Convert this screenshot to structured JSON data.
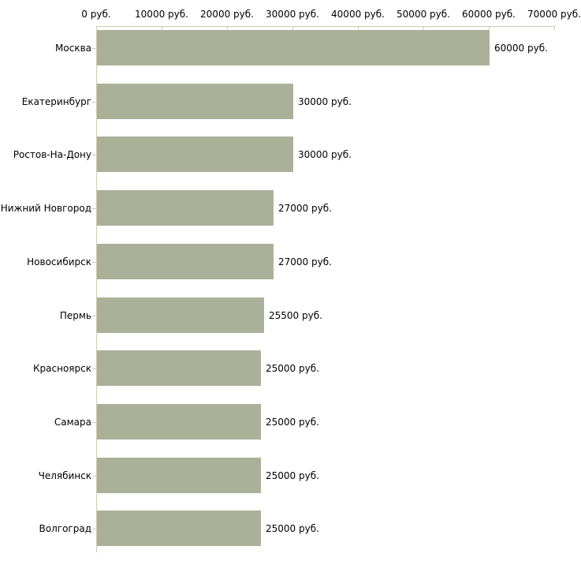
{
  "chart_data": {
    "type": "bar",
    "orientation": "horizontal",
    "title": "",
    "xlabel": "",
    "ylabel": "",
    "categories": [
      "Москва",
      "Екатеринбург",
      "Ростов-На-Дону",
      "Нижний Новгород",
      "Новосибирск",
      "Пермь",
      "Красноярск",
      "Самара",
      "Челябинск",
      "Волгоград"
    ],
    "values": [
      60000,
      30000,
      30000,
      27000,
      27000,
      25500,
      25000,
      25000,
      25000,
      25000
    ],
    "value_labels": [
      "60000 руб.",
      "30000 руб.",
      "30000 руб.",
      "27000 руб.",
      "27000 руб.",
      "25500 руб.",
      "25000 руб.",
      "25000 руб.",
      "25000 руб.",
      "25000 руб."
    ],
    "x_tick_values": [
      0,
      10000,
      20000,
      30000,
      40000,
      50000,
      60000,
      70000
    ],
    "x_tick_labels": [
      "0 руб.",
      "10000 руб.",
      "20000 руб.",
      "30000 руб.",
      "40000 руб.",
      "50000 руб.",
      "60000 руб.",
      "70000 руб."
    ],
    "xlim": [
      0,
      70000
    ],
    "axis_position": "top",
    "grid": "off",
    "legend": "none",
    "colors": {
      "bar": "#abb199",
      "axis": "#cfcbb1",
      "text": "#000000",
      "background": "#ffffff"
    }
  }
}
